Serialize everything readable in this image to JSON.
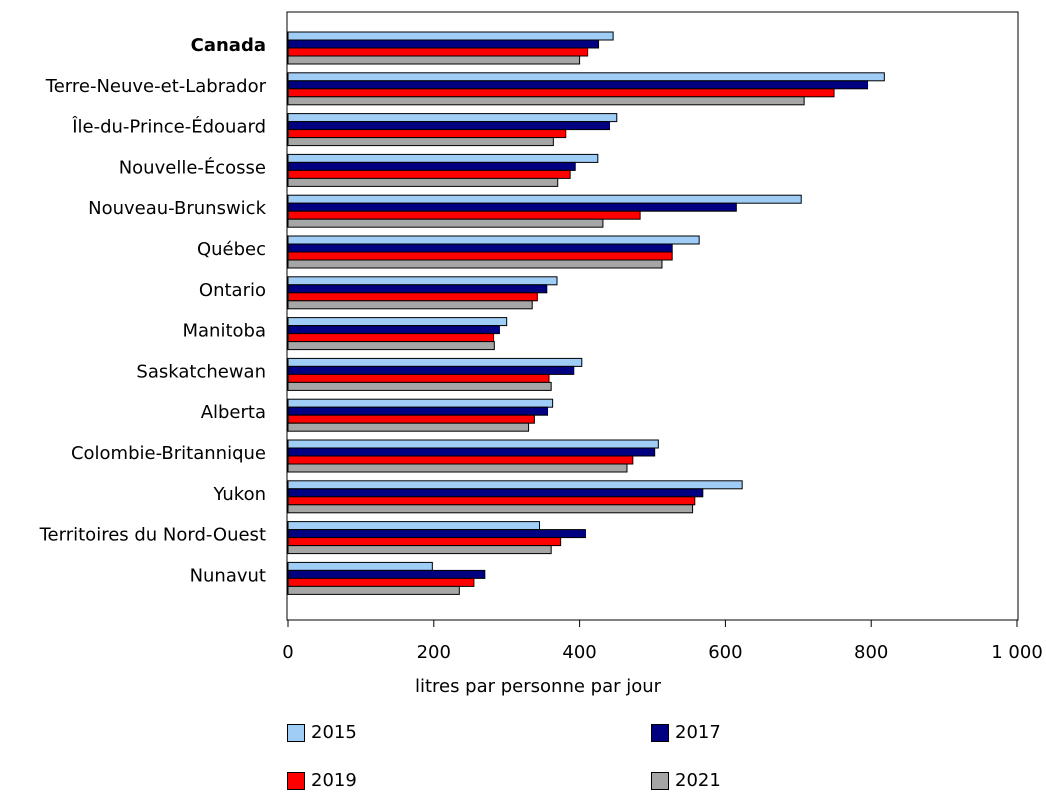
{
  "chart_data": {
    "type": "bar",
    "orientation": "horizontal",
    "xlabel": "litres par personne par jour",
    "ylabel": "",
    "xlim": [
      0,
      1000
    ],
    "x_ticks": [
      0,
      200,
      400,
      600,
      800,
      1000
    ],
    "x_tick_labels": [
      "0",
      "200",
      "400",
      "600",
      "800",
      "1 000"
    ],
    "grid": false,
    "legend_position": "bottom",
    "categories": [
      "Canada",
      "Terre-Neuve-et-Labrador",
      "Île-du-Prince-Édouard",
      "Nouvelle-Écosse",
      "Nouveau-Brunswick",
      "Québec",
      "Ontario",
      "Manitoba",
      "Saskatchewan",
      "Alberta",
      "Colombie-Britannique",
      "Yukon",
      "Territoires du Nord-Ouest",
      "Nunavut"
    ],
    "bold_categories": [
      "Canada"
    ],
    "series": [
      {
        "name": "2015",
        "color": "#9fcdf5",
        "values": [
          446,
          818,
          451,
          425,
          704,
          564,
          369,
          300,
          403,
          363,
          508,
          623,
          345,
          198
        ]
      },
      {
        "name": "2017",
        "color": "#000080",
        "values": [
          426,
          795,
          441,
          394,
          615,
          527,
          355,
          290,
          392,
          356,
          503,
          569,
          408,
          270
        ]
      },
      {
        "name": "2019",
        "color": "#ff0000",
        "values": [
          411,
          749,
          381,
          387,
          483,
          527,
          342,
          282,
          358,
          338,
          473,
          558,
          374,
          255
        ]
      },
      {
        "name": "2021",
        "color": "#a6a6a6",
        "values": [
          400,
          708,
          364,
          370,
          432,
          513,
          335,
          283,
          361,
          330,
          465,
          555,
          361,
          235
        ]
      }
    ]
  }
}
